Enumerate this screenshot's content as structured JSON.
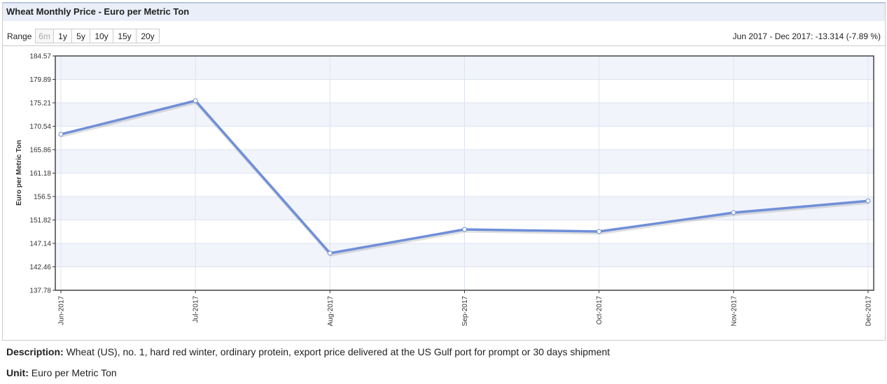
{
  "chart_data": {
    "type": "line",
    "title": "Wheat Monthly Price - Euro per Metric Ton",
    "range_label": "Range",
    "range_buttons": [
      "6m",
      "1y",
      "5y",
      "10y",
      "15y",
      "20y"
    ],
    "range_summary": "Jun 2017 - Dec 2017: -13.314 (-7.89 %)",
    "y_label": "Euro per Metric Ton",
    "categories": [
      "Jun-2017",
      "Jul-2017",
      "Aug-2017",
      "Sep-2017",
      "Oct-2017",
      "Nov-2017",
      "Dec-2017"
    ],
    "values": [
      168.93,
      175.63,
      145.18,
      149.93,
      149.51,
      153.28,
      155.62
    ],
    "color": "#6f8fd8",
    "ylim": [
      137.78,
      184.57
    ],
    "yticks": [
      137.78,
      142.46,
      147.14,
      151.82,
      156.5,
      161.18,
      165.86,
      170.54,
      175.21,
      179.89,
      184.57
    ],
    "grid": true
  },
  "description": {
    "label": "Description:",
    "text": "Wheat (US), no. 1, hard red winter, ordinary protein, export price delivered at the US Gulf port for prompt or 30 days shipment"
  },
  "unit": {
    "label": "Unit:",
    "text": "Euro per Metric Ton"
  }
}
